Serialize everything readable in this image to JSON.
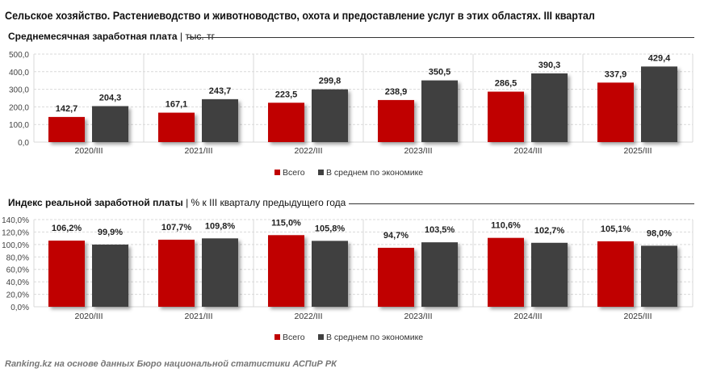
{
  "title": "Сельское хозяйство. Растениеводство и животноводство, охота и предоставление услуг в этих областях. III квартал",
  "footer": "Ranking.kz на основе данных Бюро национальной статистики АСПиР РК",
  "colors": {
    "total": "#c00000",
    "economy": "#404040"
  },
  "chart_data": [
    {
      "type": "bar",
      "title": "Среднемесячная заработная плата",
      "unit": "тыс. тг",
      "categories": [
        "2020/III",
        "2021/III",
        "2022/III",
        "2023/III",
        "2024/III",
        "2025/III"
      ],
      "ylim": [
        0,
        500
      ],
      "yticks": [
        "0,0",
        "100,0",
        "200,0",
        "300,0",
        "400,0",
        "500,0"
      ],
      "grid": true,
      "legend": "bottom",
      "series": [
        {
          "name": "Всего",
          "values": [
            142.7,
            167.1,
            223.5,
            238.9,
            286.5,
            337.9
          ],
          "labels": [
            "142,7",
            "167,1",
            "223,5",
            "238,9",
            "286,5",
            "337,9"
          ]
        },
        {
          "name": "В среднем по экономике",
          "values": [
            204.3,
            243.7,
            299.8,
            350.5,
            390.3,
            429.4
          ],
          "labels": [
            "204,3",
            "243,7",
            "299,8",
            "350,5",
            "390,3",
            "429,4"
          ]
        }
      ]
    },
    {
      "type": "bar",
      "title": "Индекс реальной заработной платы",
      "unit": "% к III кварталу предыдущего года",
      "categories": [
        "2020/III",
        "2021/III",
        "2022/III",
        "2023/III",
        "2024/III",
        "2025/III"
      ],
      "ylim": [
        0,
        140
      ],
      "yticks": [
        "0,0%",
        "20,0%",
        "40,0%",
        "60,0%",
        "80,0%",
        "100,0%",
        "120,0%",
        "140,0%"
      ],
      "grid": true,
      "legend": "bottom",
      "series": [
        {
          "name": "Всего",
          "values": [
            106.2,
            107.7,
            115.0,
            94.7,
            110.6,
            105.1
          ],
          "labels": [
            "106,2%",
            "107,7%",
            "115,0%",
            "94,7%",
            "110,6%",
            "105,1%"
          ]
        },
        {
          "name": "В среднем по экономике",
          "values": [
            99.9,
            109.8,
            105.8,
            103.5,
            102.7,
            98.0
          ],
          "labels": [
            "99,9%",
            "109,8%",
            "105,8%",
            "103,5%",
            "102,7%",
            "98,0%"
          ]
        }
      ]
    }
  ]
}
